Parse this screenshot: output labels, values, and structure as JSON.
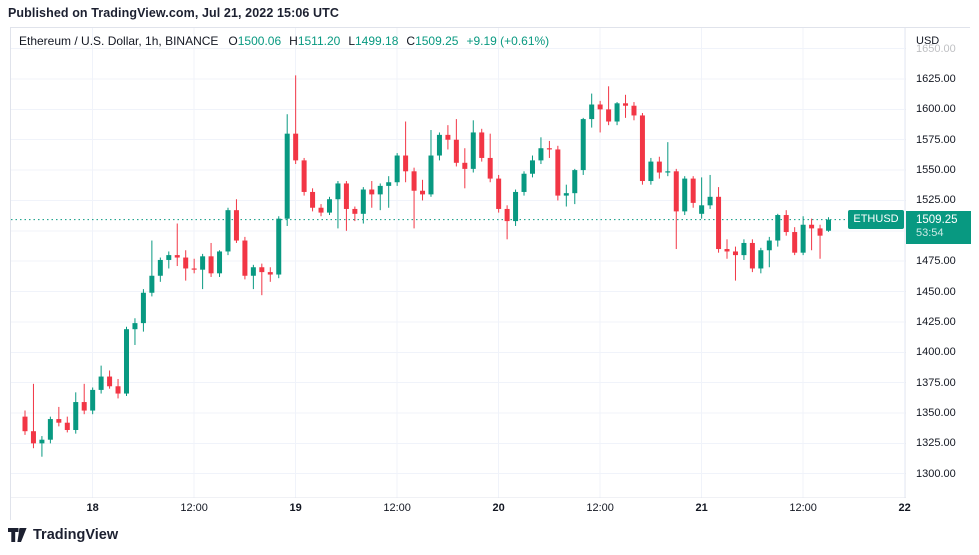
{
  "published_line": "Published on TradingView.com, Jul 21, 2022 15:06 UTC",
  "header": {
    "symbol_title": "Ethereum / U.S. Dollar, 1h, BINANCE",
    "ohlc": {
      "o_label": "O",
      "o": "1500.06",
      "h_label": "H",
      "h": "1511.20",
      "l_label": "L",
      "l": "1499.18",
      "c_label": "C",
      "c": "1509.25"
    },
    "change": "+9.19 (+0.61%)"
  },
  "price_axis": {
    "currency_label": "USD",
    "faded_top_label": "1650.00",
    "tick_labels": [
      "1625.00",
      "1600.00",
      "1575.00",
      "1550.00",
      "1525.00",
      "1475.00",
      "1450.00",
      "1425.00",
      "1400.00",
      "1375.00",
      "1350.00",
      "1325.00",
      "1300.00"
    ],
    "last_price_label": {
      "symbol": "ETHUSD",
      "price": "1509.25",
      "countdown": "53:54"
    }
  },
  "time_axis": {
    "ticks": [
      {
        "label": "18",
        "index": 8,
        "major": true
      },
      {
        "label": "12:00",
        "index": 20,
        "major": false
      },
      {
        "label": "19",
        "index": 32,
        "major": true
      },
      {
        "label": "12:00",
        "index": 44,
        "major": false
      },
      {
        "label": "20",
        "index": 56,
        "major": true
      },
      {
        "label": "12:00",
        "index": 68,
        "major": false
      },
      {
        "label": "21",
        "index": 80,
        "major": true
      },
      {
        "label": "12:00",
        "index": 92,
        "major": false
      },
      {
        "label": "22",
        "index": 104,
        "major": true
      }
    ]
  },
  "footer": {
    "brand": "TradingView"
  },
  "colors": {
    "up": "#089981",
    "down": "#f23645",
    "grid": "#f0f3fa",
    "frame": "#e0e3eb",
    "axis_text": "#131722",
    "badge_bg": "#089981",
    "dotted_line": "#089981"
  },
  "chart_data": {
    "type": "candlestick",
    "title": "Ethereum / U.S. Dollar, 1h, BINANCE",
    "symbol": "ETHUSD",
    "exchange": "BINANCE",
    "interval": "1h",
    "currency": "USD",
    "start_time": "2022-07-17 16:00 UTC",
    "end_time": "2022-07-21 15:00 UTC",
    "last_price": 1509.25,
    "last_bar_ohlc": {
      "open": 1500.06,
      "high": 1511.2,
      "low": 1499.18,
      "close": 1509.25,
      "change": 9.19,
      "change_pct": 0.61
    },
    "ylim": [
      1280,
      1667
    ],
    "y_grid_values": [
      1300,
      1325,
      1350,
      1375,
      1400,
      1425,
      1450,
      1475,
      1500,
      1525,
      1550,
      1575,
      1600,
      1625,
      1650
    ],
    "grid": true,
    "candles_ohlc": [
      [
        1347,
        1352,
        1332,
        1335
      ],
      [
        1335,
        1374,
        1321,
        1325
      ],
      [
        1325,
        1331,
        1314,
        1328
      ],
      [
        1328,
        1347,
        1325,
        1345
      ],
      [
        1345,
        1355,
        1339,
        1342
      ],
      [
        1342,
        1347,
        1334,
        1336
      ],
      [
        1336,
        1367,
        1333,
        1359
      ],
      [
        1359,
        1374,
        1349,
        1352
      ],
      [
        1352,
        1371,
        1349,
        1369
      ],
      [
        1369,
        1389,
        1366,
        1380
      ],
      [
        1380,
        1385,
        1370,
        1372
      ],
      [
        1372,
        1378,
        1362,
        1366
      ],
      [
        1366,
        1421,
        1364,
        1419
      ],
      [
        1419,
        1428,
        1406,
        1424
      ],
      [
        1424,
        1452,
        1417,
        1449
      ],
      [
        1449,
        1492,
        1446,
        1463
      ],
      [
        1463,
        1478,
        1458,
        1476
      ],
      [
        1476,
        1483,
        1469,
        1480
      ],
      [
        1480,
        1506,
        1471,
        1478
      ],
      [
        1478,
        1484,
        1459,
        1469
      ],
      [
        1469,
        1477,
        1465,
        1468
      ],
      [
        1468,
        1481,
        1452,
        1479
      ],
      [
        1479,
        1490,
        1462,
        1465
      ],
      [
        1465,
        1484,
        1462,
        1483
      ],
      [
        1483,
        1519,
        1480,
        1517
      ],
      [
        1517,
        1526,
        1490,
        1492
      ],
      [
        1492,
        1495,
        1460,
        1463
      ],
      [
        1463,
        1472,
        1452,
        1470
      ],
      [
        1470,
        1473,
        1447,
        1466
      ],
      [
        1466,
        1470,
        1458,
        1464
      ],
      [
        1464,
        1512,
        1461,
        1510
      ],
      [
        1510,
        1596,
        1504,
        1580
      ],
      [
        1580,
        1628,
        1555,
        1558
      ],
      [
        1558,
        1560,
        1529,
        1532
      ],
      [
        1532,
        1535,
        1516,
        1519
      ],
      [
        1519,
        1522,
        1512,
        1515
      ],
      [
        1515,
        1528,
        1513,
        1526
      ],
      [
        1526,
        1541,
        1502,
        1539
      ],
      [
        1539,
        1541,
        1500,
        1518
      ],
      [
        1518,
        1520,
        1508,
        1514
      ],
      [
        1514,
        1536,
        1506,
        1534
      ],
      [
        1534,
        1541,
        1519,
        1530
      ],
      [
        1530,
        1539,
        1517,
        1537
      ],
      [
        1537,
        1545,
        1519,
        1540
      ],
      [
        1540,
        1564,
        1537,
        1562
      ],
      [
        1562,
        1590,
        1540,
        1549
      ],
      [
        1549,
        1552,
        1502,
        1533
      ],
      [
        1533,
        1542,
        1525,
        1530
      ],
      [
        1530,
        1583,
        1528,
        1562
      ],
      [
        1562,
        1581,
        1558,
        1579
      ],
      [
        1579,
        1587,
        1567,
        1575
      ],
      [
        1575,
        1592,
        1553,
        1556
      ],
      [
        1556,
        1568,
        1535,
        1551
      ],
      [
        1551,
        1591,
        1548,
        1581
      ],
      [
        1581,
        1584,
        1557,
        1560
      ],
      [
        1560,
        1580,
        1540,
        1543
      ],
      [
        1543,
        1546,
        1515,
        1518
      ],
      [
        1518,
        1521,
        1493,
        1508
      ],
      [
        1508,
        1534,
        1504,
        1532
      ],
      [
        1532,
        1549,
        1529,
        1547
      ],
      [
        1547,
        1562,
        1544,
        1558
      ],
      [
        1558,
        1577,
        1555,
        1568
      ],
      [
        1568,
        1574,
        1560,
        1567
      ],
      [
        1567,
        1570,
        1525,
        1529
      ],
      [
        1529,
        1538,
        1520,
        1531
      ],
      [
        1531,
        1551,
        1522,
        1550
      ],
      [
        1550,
        1593,
        1546,
        1592
      ],
      [
        1592,
        1613,
        1585,
        1604
      ],
      [
        1604,
        1607,
        1581,
        1600
      ],
      [
        1600,
        1619,
        1587,
        1590
      ],
      [
        1590,
        1606,
        1587,
        1605
      ],
      [
        1605,
        1612,
        1593,
        1603
      ],
      [
        1603,
        1606,
        1591,
        1595
      ],
      [
        1595,
        1597,
        1538,
        1541
      ],
      [
        1541,
        1560,
        1538,
        1557
      ],
      [
        1557,
        1561,
        1543,
        1548
      ],
      [
        1548,
        1573,
        1545,
        1549
      ],
      [
        1549,
        1551,
        1485,
        1516
      ],
      [
        1516,
        1545,
        1513,
        1543
      ],
      [
        1543,
        1545,
        1519,
        1523
      ],
      [
        1514,
        1544,
        1510,
        1521
      ],
      [
        1521,
        1546,
        1518,
        1528
      ],
      [
        1528,
        1536,
        1482,
        1485
      ],
      [
        1485,
        1493,
        1477,
        1483
      ],
      [
        1483,
        1487,
        1459,
        1480
      ],
      [
        1480,
        1493,
        1476,
        1490
      ],
      [
        1490,
        1493,
        1466,
        1469
      ],
      [
        1469,
        1486,
        1465,
        1484
      ],
      [
        1484,
        1495,
        1470,
        1492
      ],
      [
        1492,
        1514,
        1487,
        1513
      ],
      [
        1513,
        1517,
        1496,
        1499
      ],
      [
        1499,
        1503,
        1480,
        1482
      ],
      [
        1482,
        1512,
        1480,
        1505
      ],
      [
        1505,
        1510,
        1484,
        1502
      ],
      [
        1502,
        1505,
        1477,
        1496
      ],
      [
        1500.06,
        1511.2,
        1499.18,
        1509.25
      ]
    ],
    "x_ticks": [
      {
        "label": "18",
        "index": 8,
        "major": true
      },
      {
        "label": "12:00",
        "index": 20,
        "major": false
      },
      {
        "label": "19",
        "index": 32,
        "major": true
      },
      {
        "label": "12:00",
        "index": 44,
        "major": false
      },
      {
        "label": "20",
        "index": 56,
        "major": true
      },
      {
        "label": "12:00",
        "index": 68,
        "major": false
      },
      {
        "label": "21",
        "index": 80,
        "major": true
      },
      {
        "label": "12:00",
        "index": 92,
        "major": false
      },
      {
        "label": "22",
        "index": 104,
        "major": true
      }
    ]
  }
}
